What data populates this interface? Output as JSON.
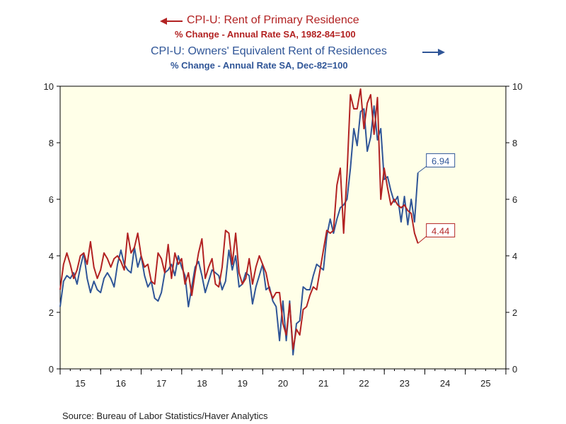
{
  "legend": {
    "rent_title": "CPI-U: Rent of Primary Residence",
    "rent_sub": "% Change - Annual Rate    SA, 1982-84=100",
    "oer_title": "CPI-U: Owners' Equivalent Rent of Residences",
    "oer_sub": "% Change - Annual Rate    SA, Dec-82=100"
  },
  "source": "Source:  Bureau of Labor Statistics/Haver Analytics",
  "colors": {
    "rent": "#b22222",
    "oer": "#2f5597",
    "plot_bg": "#ffffe8"
  },
  "chart_data": {
    "type": "line",
    "xlim": [
      2014.5,
      2025.5
    ],
    "ylim": [
      0,
      10
    ],
    "y_ticks": [
      0,
      2,
      4,
      6,
      8,
      10
    ],
    "x_tick_labels": [
      "15",
      "16",
      "17",
      "18",
      "19",
      "20",
      "21",
      "22",
      "23",
      "24",
      "25"
    ],
    "x_tick_values": [
      2015,
      2016,
      2017,
      2018,
      2019,
      2020,
      2021,
      2022,
      2023,
      2024,
      2025
    ],
    "grid": false,
    "axes": "dual (left and right, same scale)",
    "series": [
      {
        "name": "CPI-U: Rent of Primary Residence",
        "axis": "left",
        "color": "#b22222",
        "end_label": "4.44",
        "values": [
          2.8,
          3.7,
          4.1,
          3.7,
          3.2,
          3.5,
          4.0,
          4.1,
          3.7,
          4.5,
          3.6,
          3.2,
          3.5,
          4.1,
          3.9,
          3.6,
          3.9,
          4.0,
          3.8,
          3.5,
          4.8,
          4.1,
          4.3,
          4.8,
          4.0,
          3.6,
          3.7,
          3.1,
          3.0,
          4.1,
          3.9,
          3.4,
          4.4,
          3.2,
          4.1,
          3.7,
          3.9,
          3.0,
          3.4,
          2.6,
          3.4,
          4.1,
          4.6,
          3.2,
          3.6,
          3.9,
          3.0,
          2.9,
          3.6,
          4.9,
          4.8,
          3.7,
          4.8,
          3.4,
          3.0,
          3.2,
          3.9,
          3.0,
          3.6,
          4.0,
          3.7,
          3.4,
          2.8,
          2.5,
          2.7,
          2.7,
          1.6,
          1.2,
          2.3,
          0.7,
          1.4,
          1.2,
          2.1,
          2.2,
          2.6,
          2.9,
          2.8,
          3.5,
          4.2,
          4.9,
          4.8,
          4.9,
          6.5,
          7.1,
          4.8,
          6.9,
          9.7,
          9.2,
          9.2,
          9.9,
          8.5,
          9.4,
          9.7,
          8.3,
          9.6,
          6.0,
          7.1,
          6.4,
          5.8,
          6.0,
          5.8,
          5.7,
          5.8,
          5.6,
          5.5,
          4.8,
          4.44
        ],
        "x_start": 2014.5,
        "x_step": 0.0833
      },
      {
        "name": "CPI-U: Owners' Equivalent Rent of Residences",
        "axis": "right",
        "color": "#2f5597",
        "end_label": "6.94",
        "values": [
          2.2,
          3.1,
          3.3,
          3.2,
          3.4,
          3.0,
          3.6,
          4.1,
          3.2,
          2.7,
          3.1,
          2.8,
          2.7,
          3.2,
          3.4,
          3.2,
          2.9,
          3.7,
          4.2,
          3.7,
          3.5,
          3.4,
          4.3,
          3.6,
          4.0,
          3.3,
          2.9,
          3.1,
          2.5,
          2.4,
          2.7,
          3.4,
          3.5,
          3.7,
          3.3,
          4.0,
          3.6,
          3.3,
          2.2,
          2.9,
          3.6,
          3.8,
          3.3,
          2.7,
          3.1,
          3.5,
          3.4,
          3.3,
          2.8,
          3.1,
          4.2,
          3.5,
          4.0,
          2.9,
          3.0,
          3.4,
          3.3,
          2.3,
          2.9,
          3.3,
          3.7,
          2.8,
          2.9,
          2.4,
          2.2,
          1.0,
          2.4,
          1.0,
          2.4,
          0.5,
          1.6,
          1.7,
          2.9,
          2.8,
          2.8,
          3.3,
          3.7,
          3.6,
          3.5,
          4.7,
          5.3,
          4.8,
          5.3,
          5.7,
          5.8,
          6.0,
          7.1,
          8.5,
          7.9,
          9.1,
          9.2,
          7.7,
          8.2,
          9.3,
          8.1,
          8.5,
          6.7,
          6.8,
          6.3,
          5.9,
          6.1,
          5.2,
          6.1,
          5.1,
          6.0,
          5.2,
          6.94
        ],
        "x_start": 2014.5,
        "x_step": 0.0833
      }
    ]
  }
}
